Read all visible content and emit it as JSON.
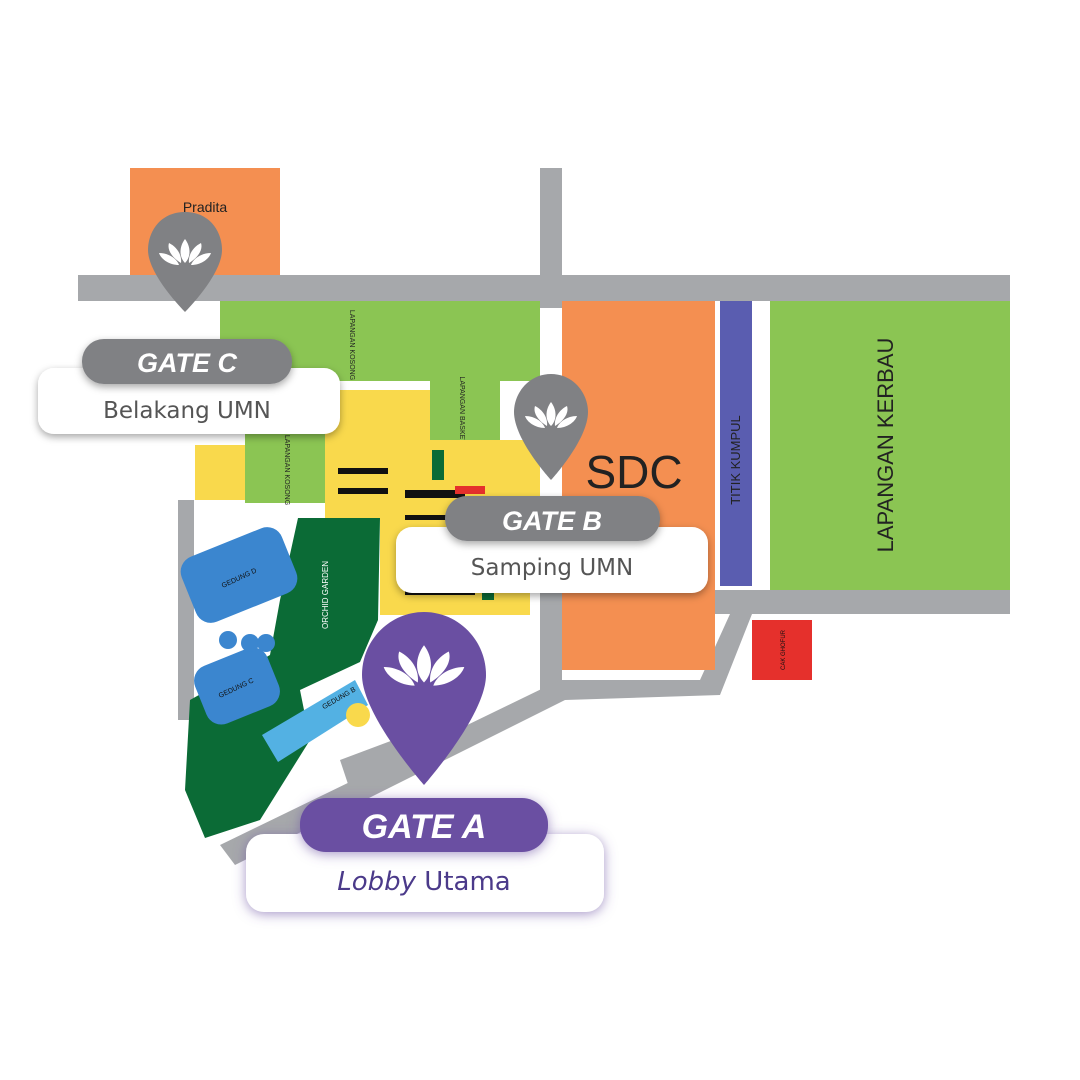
{
  "buildings": {
    "pradita": "Pradita",
    "sdc": "SDC",
    "titik_kumpul": "TITIK KUMPUL",
    "lapangan_kerbau": "LAPANGAN KERBAU",
    "lapangan_kosong_top": "LAPANGAN KOSONG",
    "lapangan_basket": "LAPANGAN BASKET",
    "lapangan_kosong_left": "LAPANGAN KOSONG",
    "gedung_d": "GEDUNG D",
    "gedung_c": "GEDUNG C",
    "gedung_b": "GEDUNG B",
    "orchid_garden": "ORCHID GARDEN",
    "cak_ghofur": "CAK GHOFUR"
  },
  "gates": {
    "a": {
      "title": "GATE A",
      "subtitle_italic": "Lobby",
      "subtitle_rest": " Utama"
    },
    "b": {
      "title": "GATE B",
      "subtitle": "Samping UMN"
    },
    "c": {
      "title": "GATE C",
      "subtitle": "Belakang UMN"
    }
  },
  "colors": {
    "road": "#a6a8ab",
    "field_green": "#8bc553",
    "orange": "#f48f51",
    "yellow": "#f9d94c",
    "purple": "#6a4fa2",
    "dark_green": "#0b6b36",
    "blue": "#3b86cf",
    "light_blue": "#53b1e3",
    "red": "#e5302c",
    "pin_gray": "#808184"
  },
  "icons": {
    "gate_pin": "lotus-map-pin-icon"
  }
}
